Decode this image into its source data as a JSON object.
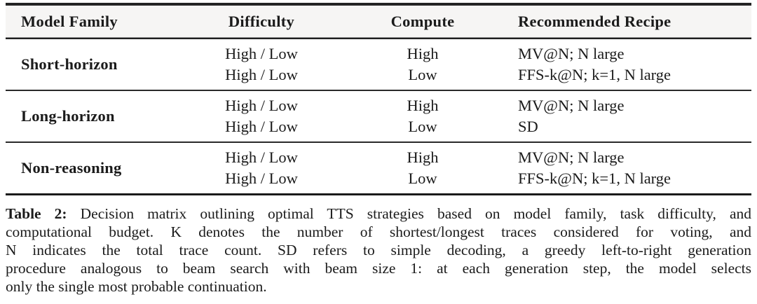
{
  "table": {
    "columns": [
      "Model Family",
      "Difficulty",
      "Compute",
      "Recommended Recipe"
    ],
    "groups": [
      {
        "family": "Short-horizon",
        "rows": [
          {
            "difficulty": "High / Low",
            "compute": "High",
            "recipe": "MV@N; N large"
          },
          {
            "difficulty": "High / Low",
            "compute": "Low",
            "recipe": "FFS-k@N; k=1, N large"
          }
        ]
      },
      {
        "family": "Long-horizon",
        "rows": [
          {
            "difficulty": "High / Low",
            "compute": "High",
            "recipe": "MV@N; N large"
          },
          {
            "difficulty": "High / Low",
            "compute": "Low",
            "recipe": "SD"
          }
        ]
      },
      {
        "family": "Non-reasoning",
        "rows": [
          {
            "difficulty": "High / Low",
            "compute": "High",
            "recipe": "MV@N; N large"
          },
          {
            "difficulty": "High / Low",
            "compute": "Low",
            "recipe": "FFS-k@N; k=1, N large"
          }
        ]
      }
    ]
  },
  "caption": {
    "label": "Table 2:",
    "lines": [
      " Decision matrix outlining optimal TTS strategies based on model family, task difficulty, and",
      "computational budget. K denotes the number of shortest/longest traces considered for voting, and",
      "N indicates the total trace count. SD refers to simple decoding, a greedy left-to-right generation",
      "procedure analogous to beam search with beam size 1: at each generation step, the model selects",
      "only the single most probable continuation."
    ]
  },
  "colors": {
    "header_bg": "#f6f5f4",
    "rule_dark": "#1f1f1f",
    "rule_light": "#8f8f8f",
    "text": "#1b1b1b",
    "background": "#ffffff"
  }
}
